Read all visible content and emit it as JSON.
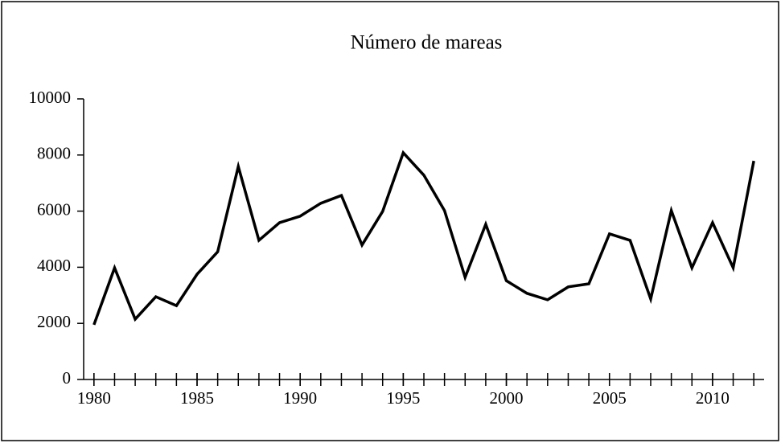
{
  "chart_data": {
    "type": "line",
    "title": "Número de mareas",
    "x": [
      1980,
      1981,
      1982,
      1983,
      1984,
      1985,
      1986,
      1987,
      1988,
      1989,
      1990,
      1991,
      1992,
      1993,
      1994,
      1995,
      1996,
      1997,
      1998,
      1999,
      2000,
      2001,
      2002,
      2003,
      2004,
      2005,
      2006,
      2007,
      2008,
      2009,
      2010,
      2011,
      2012
    ],
    "series": [
      {
        "color": "#000000",
        "values": [
          1950,
          3980,
          2150,
          2950,
          2630,
          3750,
          4550,
          7590,
          4960,
          5590,
          5820,
          6280,
          6560,
          4790,
          5990,
          8080,
          7280,
          6020,
          3640,
          5530,
          3520,
          3070,
          2840,
          3300,
          3410,
          5190,
          4960,
          2870,
          6020,
          3980,
          5590,
          3980,
          7790
        ]
      }
    ],
    "xlim": [
      1979.5,
      2012.5
    ],
    "xticks": [
      1980,
      1985,
      1990,
      1995,
      2000,
      2005,
      2010
    ],
    "xminorticks": [
      1980,
      1981,
      1982,
      1983,
      1984,
      1985,
      1986,
      1987,
      1988,
      1989,
      1990,
      1991,
      1992,
      1993,
      1994,
      1995,
      1996,
      1997,
      1998,
      1999,
      2000,
      2001,
      2002,
      2003,
      2004,
      2005,
      2006,
      2007,
      2008,
      2009,
      2010,
      2011,
      2012
    ],
    "ylim": [
      0,
      10000
    ],
    "yticks": [
      0,
      2000,
      4000,
      6000,
      8000,
      10000
    ],
    "grid": false
  }
}
